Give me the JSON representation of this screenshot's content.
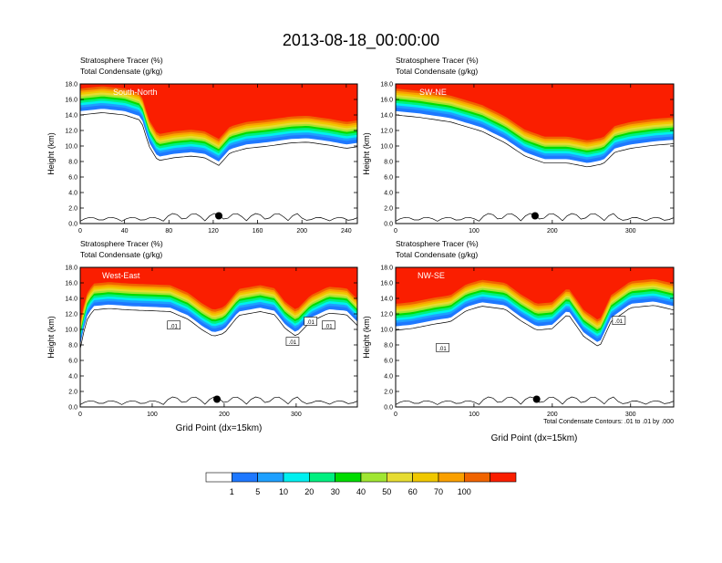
{
  "figure": {
    "title": "2013-08-18_00:00:00",
    "contour_note": "Total Condensate Contours: .01 to .01 by .000"
  },
  "colors": {
    "frame": "#000000",
    "contour": "#000000",
    "terrain_marker": "#000000"
  },
  "chart_data": [
    {
      "type": "heatmap",
      "subtitle_line1": "Stratosphere Tracer   (%)",
      "subtitle_line2": "Total Condensate   (g/kg)",
      "label": "South-North",
      "ylabel": "Height (km)",
      "xlabel": "",
      "xlim": [
        0,
        250
      ],
      "ylim": [
        0,
        18
      ],
      "xticks": [
        0,
        40,
        80,
        120,
        160,
        200,
        240
      ],
      "yticks": [
        "0.0",
        "2.0",
        "4.0",
        "6.0",
        "8.0",
        "10.0",
        "12.0",
        "14.0",
        "16.0",
        "18.0"
      ],
      "marker_x": 125,
      "contour_labels": [],
      "tracer_base_km": [
        [
          0,
          14.5
        ],
        [
          20,
          14.8
        ],
        [
          40,
          14.5
        ],
        [
          55,
          13.8
        ],
        [
          62,
          10.5
        ],
        [
          70,
          8.6
        ],
        [
          85,
          9.0
        ],
        [
          100,
          9.2
        ],
        [
          112,
          9.0
        ],
        [
          125,
          8.0
        ],
        [
          135,
          9.6
        ],
        [
          150,
          10.2
        ],
        [
          170,
          10.5
        ],
        [
          190,
          10.9
        ],
        [
          205,
          11.0
        ],
        [
          225,
          10.6
        ],
        [
          240,
          10.2
        ],
        [
          250,
          10.4
        ]
      ]
    },
    {
      "type": "heatmap",
      "subtitle_line1": "Stratosphere Tracer   (%)",
      "subtitle_line2": "Total Condensate   (g/kg)",
      "label": "SW-NE",
      "ylabel": "Height (km)",
      "xlabel": "",
      "xlim": [
        0,
        355
      ],
      "ylim": [
        0,
        18
      ],
      "xticks": [
        0,
        100,
        200,
        300
      ],
      "yticks": [
        "0.0",
        "2.0",
        "4.0",
        "6.0",
        "8.0",
        "10.0",
        "12.0",
        "14.0",
        "16.0",
        "18.0"
      ],
      "marker_x": 178,
      "contour_labels": [],
      "tracer_base_km": [
        [
          0,
          14.5
        ],
        [
          30,
          14.2
        ],
        [
          70,
          13.6
        ],
        [
          110,
          12.4
        ],
        [
          140,
          10.9
        ],
        [
          165,
          9.2
        ],
        [
          190,
          8.3
        ],
        [
          220,
          8.3
        ],
        [
          245,
          7.8
        ],
        [
          265,
          8.2
        ],
        [
          280,
          9.7
        ],
        [
          300,
          10.2
        ],
        [
          330,
          10.6
        ],
        [
          355,
          10.8
        ]
      ]
    },
    {
      "type": "heatmap",
      "subtitle_line1": "Stratosphere Tracer   (%)",
      "subtitle_line2": "Total Condensate   (g/kg)",
      "label": "West-East",
      "ylabel": "Height (km)",
      "xlabel": "Grid Point (dx=15km)",
      "xlim": [
        0,
        385
      ],
      "ylim": [
        0,
        18
      ],
      "xticks": [
        0,
        100,
        200,
        300
      ],
      "yticks": [
        "0.0",
        "2.0",
        "4.0",
        "6.0",
        "8.0",
        "10.0",
        "12.0",
        "14.0",
        "16.0",
        "18.0"
      ],
      "marker_x": 190,
      "contour_labels": [
        {
          "x": 130,
          "y": 10.5,
          "text": ".01"
        },
        {
          "x": 295,
          "y": 8.4,
          "text": ".01"
        },
        {
          "x": 320,
          "y": 11.0,
          "text": ".01"
        },
        {
          "x": 345,
          "y": 10.5,
          "text": ".01"
        }
      ],
      "tracer_base_km": [
        [
          0,
          8.0
        ],
        [
          8,
          11.5
        ],
        [
          18,
          13.0
        ],
        [
          40,
          13.2
        ],
        [
          70,
          13.0
        ],
        [
          100,
          12.9
        ],
        [
          125,
          12.8
        ],
        [
          150,
          11.8
        ],
        [
          170,
          10.4
        ],
        [
          185,
          9.6
        ],
        [
          200,
          10.0
        ],
        [
          220,
          12.3
        ],
        [
          250,
          12.8
        ],
        [
          270,
          12.4
        ],
        [
          285,
          10.6
        ],
        [
          300,
          9.6
        ],
        [
          320,
          11.5
        ],
        [
          345,
          12.6
        ],
        [
          370,
          12.4
        ],
        [
          385,
          11.0
        ]
      ]
    },
    {
      "type": "heatmap",
      "subtitle_line1": "Stratosphere Tracer   (%)",
      "subtitle_line2": "Total Condensate   (g/kg)",
      "label": "NW-SE",
      "ylabel": "Height (km)",
      "xlabel": "Grid Point (dx=15km)",
      "xlim": [
        0,
        355
      ],
      "ylim": [
        0,
        18
      ],
      "xticks": [
        0,
        100,
        200,
        300
      ],
      "yticks": [
        "0.0",
        "2.0",
        "4.0",
        "6.0",
        "8.0",
        "10.0",
        "12.0",
        "14.0",
        "16.0",
        "18.0"
      ],
      "marker_x": 180,
      "contour_labels": [
        {
          "x": 60,
          "y": 7.6,
          "text": ".01"
        },
        {
          "x": 285,
          "y": 11.1,
          "text": ".01"
        }
      ],
      "tracer_base_km": [
        [
          0,
          10.4
        ],
        [
          20,
          10.6
        ],
        [
          50,
          11.2
        ],
        [
          70,
          11.5
        ],
        [
          90,
          12.9
        ],
        [
          110,
          13.5
        ],
        [
          140,
          13.1
        ],
        [
          160,
          11.6
        ],
        [
          180,
          10.4
        ],
        [
          200,
          10.6
        ],
        [
          220,
          12.5
        ],
        [
          240,
          9.6
        ],
        [
          260,
          8.2
        ],
        [
          275,
          11.5
        ],
        [
          300,
          13.3
        ],
        [
          330,
          13.6
        ],
        [
          355,
          13.0
        ]
      ]
    }
  ],
  "colorbar": {
    "labels": [
      "1",
      "5",
      "10",
      "20",
      "30",
      "40",
      "50",
      "60",
      "70",
      "100"
    ],
    "colors": [
      "#ffffff",
      "#1e78ff",
      "#1ea0ff",
      "#00f0f0",
      "#00f080",
      "#00dc00",
      "#a0e632",
      "#e6dc32",
      "#f0c800",
      "#faa000",
      "#f06400",
      "#fa1e00"
    ]
  },
  "tracer_levels": [
    {
      "offset_km": 0.0,
      "color": "#1e78ff"
    },
    {
      "offset_km": 0.45,
      "color": "#1ea0ff"
    },
    {
      "offset_km": 0.75,
      "color": "#00f0f0"
    },
    {
      "offset_km": 1.05,
      "color": "#00f080"
    },
    {
      "offset_km": 1.35,
      "color": "#00dc00"
    },
    {
      "offset_km": 1.6,
      "color": "#a0e632"
    },
    {
      "offset_km": 1.85,
      "color": "#e6dc32"
    },
    {
      "offset_km": 2.1,
      "color": "#f0c800"
    },
    {
      "offset_km": 2.35,
      "color": "#faa000"
    },
    {
      "offset_km": 2.6,
      "color": "#f06400"
    },
    {
      "offset_km": 2.9,
      "color": "#fa1e00"
    }
  ]
}
